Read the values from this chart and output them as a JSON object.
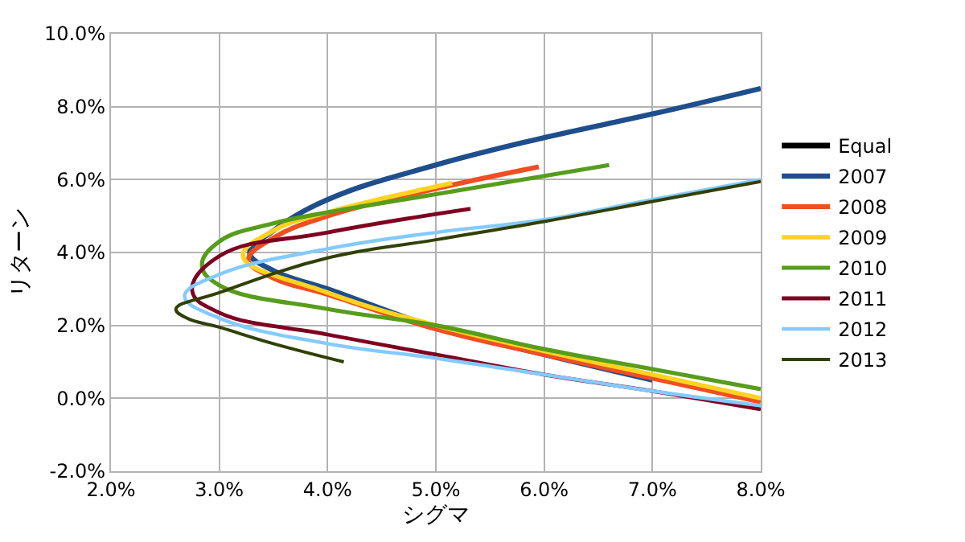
{
  "chart_data": {
    "type": "line",
    "xlabel": "シグマ",
    "ylabel": "リターン",
    "xlim": [
      2,
      8
    ],
    "ylim": [
      -2,
      10
    ],
    "xticks": [
      {
        "value": 2,
        "label": "2.0%"
      },
      {
        "value": 3,
        "label": "3.0%"
      },
      {
        "value": 4,
        "label": "4.0%"
      },
      {
        "value": 5,
        "label": "5.0%"
      },
      {
        "value": 6,
        "label": "6.0%"
      },
      {
        "value": 7,
        "label": "7.0%"
      },
      {
        "value": 8,
        "label": "8.0%"
      }
    ],
    "yticks": [
      {
        "value": -2,
        "label": "-2.0%"
      },
      {
        "value": 0,
        "label": "0.0%"
      },
      {
        "value": 2,
        "label": "2.0%"
      },
      {
        "value": 4,
        "label": "4.0%"
      },
      {
        "value": 6,
        "label": "6.0%"
      },
      {
        "value": 8,
        "label": "8.0%"
      },
      {
        "value": 10,
        "label": "10.0%"
      }
    ],
    "grid": true,
    "legend": "right",
    "marker": "none",
    "line_style": "solid",
    "series": [
      {
        "name": "Equal",
        "color": "#000000"
      },
      {
        "name": "2007",
        "color": "#1f4e8c",
        "x": [
          7.0,
          6.0,
          5.0,
          4.0,
          3.5,
          3.28,
          3.5,
          4.0,
          5.0,
          6.0,
          7.0,
          8.0
        ],
        "values": [
          0.5,
          1.2,
          1.95,
          3.0,
          3.5,
          4.0,
          4.6,
          5.45,
          6.4,
          7.15,
          7.8,
          8.5
        ]
      },
      {
        "name": "2008",
        "color": "#f04e23",
        "x": [
          8.0,
          7.0,
          6.0,
          5.0,
          4.0,
          3.5,
          3.27,
          3.5,
          4.0,
          5.0,
          5.95
        ],
        "values": [
          -0.1,
          0.55,
          1.2,
          1.9,
          2.85,
          3.3,
          3.8,
          4.4,
          5.0,
          5.75,
          6.35
        ]
      },
      {
        "name": "2009",
        "color": "#ffd320",
        "x": [
          8.0,
          7.0,
          6.0,
          5.0,
          4.0,
          3.22,
          3.5,
          4.0,
          5.15
        ],
        "values": [
          0.0,
          0.65,
          1.3,
          2.0,
          2.9,
          3.9,
          4.6,
          5.1,
          5.9
        ]
      },
      {
        "name": "2010",
        "color": "#579d1c",
        "x": [
          8.0,
          7.0,
          6.0,
          5.0,
          4.0,
          3.0,
          2.84,
          3.0,
          3.5,
          4.0,
          5.0,
          6.6
        ],
        "values": [
          0.25,
          0.8,
          1.35,
          2.0,
          2.45,
          3.1,
          3.65,
          4.3,
          4.8,
          5.1,
          5.6,
          6.4
        ]
      },
      {
        "name": "2011",
        "color": "#7e0021",
        "x": [
          8.0,
          7.0,
          6.0,
          5.0,
          4.0,
          3.0,
          2.75,
          3.0,
          4.0,
          5.32
        ],
        "values": [
          -0.3,
          0.2,
          0.65,
          1.2,
          1.75,
          2.35,
          2.95,
          3.9,
          4.55,
          5.2
        ]
      },
      {
        "name": "2012",
        "color": "#83caff",
        "x": [
          8.0,
          7.0,
          6.0,
          5.0,
          4.0,
          3.0,
          2.68,
          3.0,
          4.0,
          5.0,
          6.0,
          7.0,
          8.0
        ],
        "values": [
          -0.2,
          0.2,
          0.65,
          1.1,
          1.5,
          2.2,
          2.8,
          3.4,
          4.1,
          4.55,
          4.9,
          5.45,
          6.0
        ]
      },
      {
        "name": "2013",
        "color": "#314004",
        "x": [
          4.15,
          3.5,
          3.0,
          2.7,
          2.6,
          3.0,
          4.0,
          5.0,
          6.0,
          7.0,
          8.0
        ],
        "values": [
          1.0,
          1.5,
          1.95,
          2.2,
          2.45,
          2.9,
          3.85,
          4.35,
          4.85,
          5.4,
          5.95
        ]
      }
    ]
  }
}
